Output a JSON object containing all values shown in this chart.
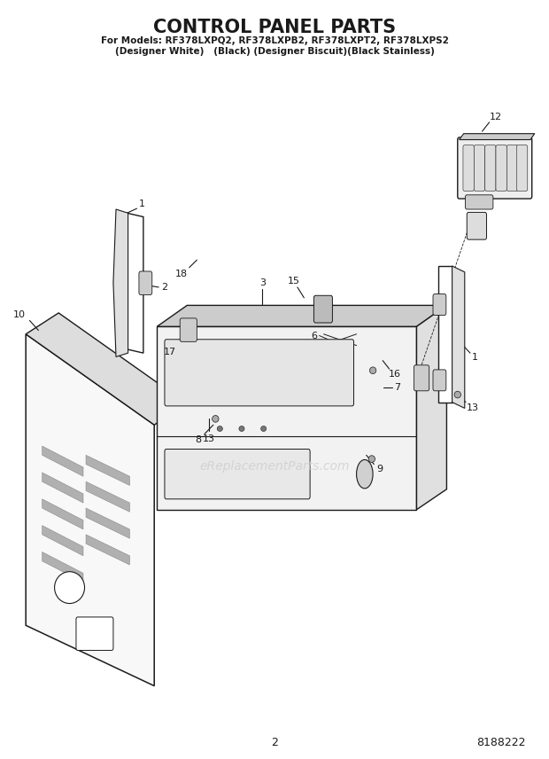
{
  "title": "CONTROL PANEL PARTS",
  "subtitle_line1": "For Models: RF378LXPQ2, RF378LXPB2, RF378LXPT2, RF378LXPS2",
  "subtitle_line2": "(Designer White)   (Black) (Designer Biscuit)(Black Stainless)",
  "watermark": "eReplacementParts.com",
  "page_number": "2",
  "doc_number": "8188222",
  "background_color": "#ffffff",
  "line_color": "#1a1a1a",
  "watermark_color": "#cccccc",
  "figsize": [
    6.2,
    8.56
  ],
  "dpi": 100
}
